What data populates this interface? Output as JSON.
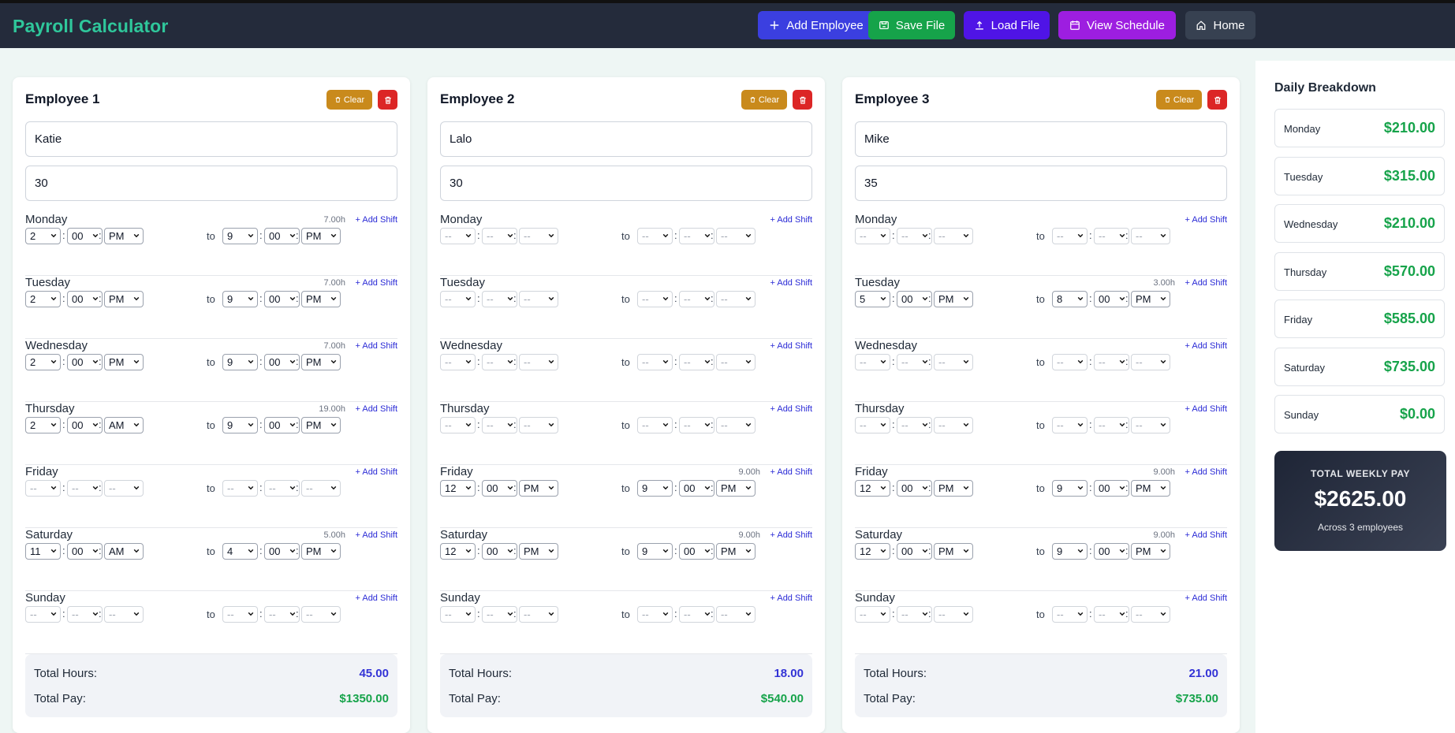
{
  "app": {
    "title": "Payroll Calculator"
  },
  "nav": [
    {
      "name": "add-employee-button",
      "icon": "plus-icon",
      "label": "Add Employee",
      "color": "#3b3fe0"
    },
    {
      "name": "save-file-button",
      "icon": "save-icon",
      "label": "Save File",
      "color": "#16a34a"
    },
    {
      "name": "load-file-button",
      "icon": "upload-icon",
      "label": "Load File",
      "color": "#4f14e6"
    },
    {
      "name": "view-schedule-button",
      "icon": "calendar-icon",
      "label": "View Schedule",
      "color": "#9d1ee0"
    },
    {
      "name": "home-button",
      "icon": "home-icon",
      "label": "Home",
      "color": "#374151"
    }
  ],
  "labels": {
    "clear": "Clear",
    "to": "to",
    "add_shift": "+ Add Shift",
    "total_hours": "Total Hours:",
    "total_pay": "Total Pay:"
  },
  "employees": [
    {
      "title": "Employee 1",
      "name": "Katie",
      "rate": "30",
      "days": [
        {
          "day": "Monday",
          "hours": "7.00h",
          "start": [
            "2",
            "00",
            "PM"
          ],
          "end": [
            "9",
            "00",
            "PM"
          ]
        },
        {
          "day": "Tuesday",
          "hours": "7.00h",
          "start": [
            "2",
            "00",
            "PM"
          ],
          "end": [
            "9",
            "00",
            "PM"
          ]
        },
        {
          "day": "Wednesday",
          "hours": "7.00h",
          "start": [
            "2",
            "00",
            "PM"
          ],
          "end": [
            "9",
            "00",
            "PM"
          ]
        },
        {
          "day": "Thursday",
          "hours": "19.00h",
          "start": [
            "2",
            "00",
            "AM"
          ],
          "end": [
            "9",
            "00",
            "PM"
          ]
        },
        {
          "day": "Friday",
          "hours": "",
          "start": null,
          "end": null
        },
        {
          "day": "Saturday",
          "hours": "5.00h",
          "start": [
            "11",
            "00",
            "AM"
          ],
          "end": [
            "4",
            "00",
            "PM"
          ]
        },
        {
          "day": "Sunday",
          "hours": "",
          "start": null,
          "end": null
        }
      ],
      "total_hours": "45.00",
      "total_pay": "$1350.00"
    },
    {
      "title": "Employee 2",
      "name": "Lalo",
      "rate": "30",
      "days": [
        {
          "day": "Monday",
          "hours": "",
          "start": null,
          "end": null
        },
        {
          "day": "Tuesday",
          "hours": "",
          "start": null,
          "end": null
        },
        {
          "day": "Wednesday",
          "hours": "",
          "start": null,
          "end": null
        },
        {
          "day": "Thursday",
          "hours": "",
          "start": null,
          "end": null
        },
        {
          "day": "Friday",
          "hours": "9.00h",
          "start": [
            "12",
            "00",
            "PM"
          ],
          "end": [
            "9",
            "00",
            "PM"
          ]
        },
        {
          "day": "Saturday",
          "hours": "9.00h",
          "start": [
            "12",
            "00",
            "PM"
          ],
          "end": [
            "9",
            "00",
            "PM"
          ]
        },
        {
          "day": "Sunday",
          "hours": "",
          "start": null,
          "end": null
        }
      ],
      "total_hours": "18.00",
      "total_pay": "$540.00"
    },
    {
      "title": "Employee 3",
      "name": "Mike",
      "rate": "35",
      "days": [
        {
          "day": "Monday",
          "hours": "",
          "start": null,
          "end": null
        },
        {
          "day": "Tuesday",
          "hours": "3.00h",
          "start": [
            "5",
            "00",
            "PM"
          ],
          "end": [
            "8",
            "00",
            "PM"
          ]
        },
        {
          "day": "Wednesday",
          "hours": "",
          "start": null,
          "end": null
        },
        {
          "day": "Thursday",
          "hours": "",
          "start": null,
          "end": null
        },
        {
          "day": "Friday",
          "hours": "9.00h",
          "start": [
            "12",
            "00",
            "PM"
          ],
          "end": [
            "9",
            "00",
            "PM"
          ]
        },
        {
          "day": "Saturday",
          "hours": "9.00h",
          "start": [
            "12",
            "00",
            "PM"
          ],
          "end": [
            "9",
            "00",
            "PM"
          ]
        },
        {
          "day": "Sunday",
          "hours": "",
          "start": null,
          "end": null
        }
      ],
      "total_hours": "21.00",
      "total_pay": "$735.00"
    }
  ],
  "placeholders": {
    "select": "--"
  },
  "breakdown": {
    "title": "Daily Breakdown",
    "days": [
      {
        "day": "Monday",
        "amount": "$210.00"
      },
      {
        "day": "Tuesday",
        "amount": "$315.00"
      },
      {
        "day": "Wednesday",
        "amount": "$210.00"
      },
      {
        "day": "Thursday",
        "amount": "$570.00"
      },
      {
        "day": "Friday",
        "amount": "$585.00"
      },
      {
        "day": "Saturday",
        "amount": "$735.00"
      },
      {
        "day": "Sunday",
        "amount": "$0.00"
      }
    ],
    "weekly_label": "TOTAL WEEKLY PAY",
    "weekly_total": "$2625.00",
    "weekly_caption": "Across 3 employees"
  },
  "colors": {
    "hours": "#3333d6",
    "pay": "#16a34a",
    "brand": "#2fc79b"
  }
}
